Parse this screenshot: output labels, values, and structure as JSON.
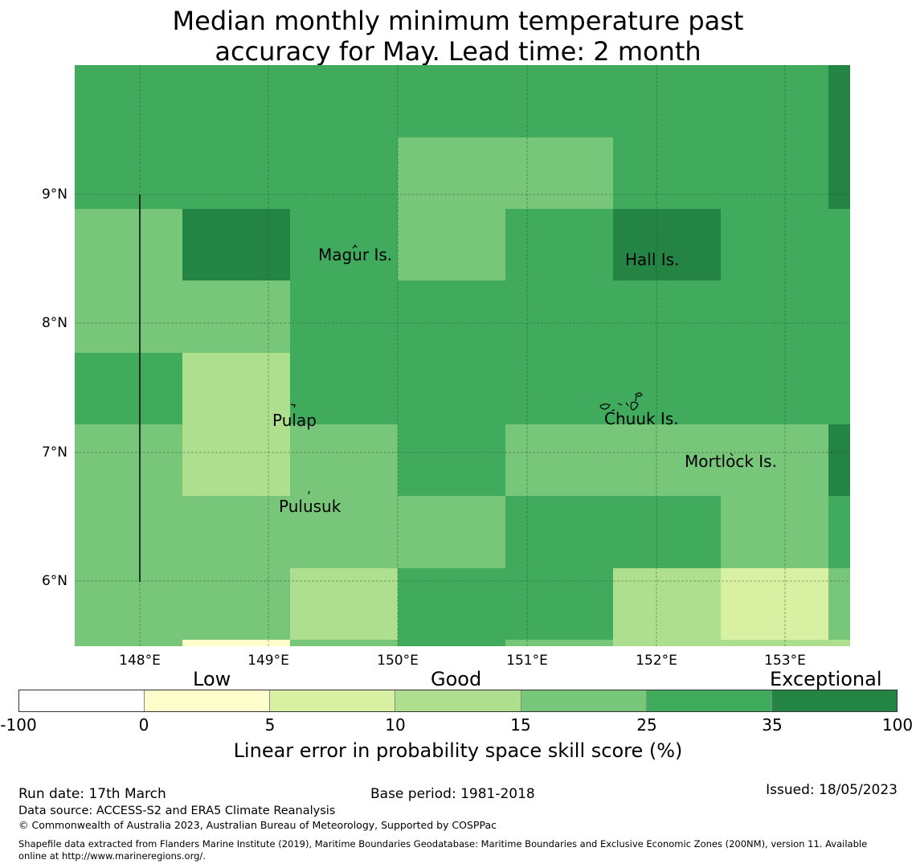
{
  "title": {
    "line1": "Median monthly minimum temperature past",
    "line2": "accuracy for May. Lead time: 2 month"
  },
  "map": {
    "lat_labels": [
      "9°N",
      "8°N",
      "7°N",
      "6°N"
    ],
    "lon_labels": [
      "148°E",
      "149°E",
      "150°E",
      "151°E",
      "152°E",
      "153°E"
    ],
    "islands": [
      "Magur Is.",
      "Hall Is.",
      "Pulap",
      "Chuuk Is.",
      "Mortlock Is.",
      "Pulusuk"
    ],
    "category_colors": {
      "c1": "#fefecc",
      "c2": "#d8f0a2",
      "c3": "#addf8e",
      "c4": "#78c679",
      "c5": "#41ab5d",
      "c6": "#238443"
    },
    "grid_rows": [
      [
        "c5",
        "c5",
        "c5",
        "c5",
        "c5",
        "c5",
        "c5",
        "c6"
      ],
      [
        "c5",
        "c5",
        "c5",
        "c4",
        "c4",
        "c5",
        "c5",
        "c6"
      ],
      [
        "c4",
        "c6",
        "c5",
        "c4",
        "c5",
        "c6",
        "c5",
        "c5"
      ],
      [
        "c4",
        "c4",
        "c5",
        "c5",
        "c5",
        "c5",
        "c5",
        "c5"
      ],
      [
        "c5",
        "c3",
        "c5",
        "c5",
        "c5",
        "c5",
        "c5",
        "c5"
      ],
      [
        "c4",
        "c3",
        "c4",
        "c5",
        "c4",
        "c4",
        "c4",
        "c6"
      ],
      [
        "c4",
        "c4",
        "c4",
        "c4",
        "c5",
        "c5",
        "c4",
        "c5"
      ],
      [
        "c4",
        "c4",
        "c3",
        "c5",
        "c5",
        "c3",
        "c2",
        "c4"
      ],
      [
        "c4",
        "c1",
        "c4",
        "c5",
        "c4",
        "c3",
        "c3",
        "c3"
      ]
    ]
  },
  "legend": {
    "categories": [
      "Low",
      "Good",
      "Exceptional"
    ],
    "colors": [
      "#ffffff",
      "#fefecc",
      "#d8f0a2",
      "#addf8e",
      "#78c679",
      "#41ab5d",
      "#238443"
    ],
    "ticks": [
      "-100",
      "0",
      "5",
      "10",
      "15",
      "25",
      "35",
      "100"
    ],
    "axis_label": "Linear error in probability space skill score (%)"
  },
  "footer": {
    "run_date": "Run date: 17th March",
    "base_period": "Base period: 1981-2018",
    "issued": "Issued: 18/05/2023",
    "data_source": "Data source: ACCESS-S2 and ERA5 Climate Reanalysis",
    "copyright": "© Commonwealth of Australia 2023, Australian Bureau of Meteorology, Supported by COSPPac",
    "shapefile_line1": "Shapefile data extracted from Flanders Marine Institute (2019), Maritime Boundaries Geodatabase: Maritime Boundaries and Exclusive Economic Zones (200NM), version 11. Available",
    "shapefile_line2": "online at http://www.marineregions.org/."
  }
}
